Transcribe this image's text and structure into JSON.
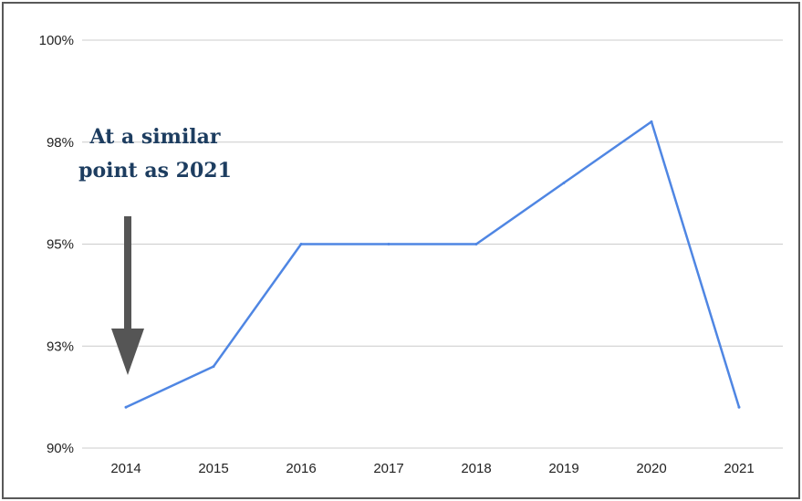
{
  "chart_data": {
    "type": "line",
    "title": "",
    "xlabel": "",
    "ylabel": "",
    "x": [
      "2014",
      "2015",
      "2016",
      "2017",
      "2018",
      "2019",
      "2020",
      "2021"
    ],
    "series": [
      {
        "values": [
          91.0,
          92.0,
          95.0,
          95.0,
          95.0,
          96.5,
          98.0,
          91.0
        ]
      }
    ],
    "ylim": [
      90,
      100
    ],
    "y_ticks": [
      90,
      92.5,
      95,
      97.5,
      100
    ],
    "y_tick_labels": [
      "90%",
      "93%",
      "95%",
      "98%",
      "100%"
    ],
    "grid": true,
    "legend": "none",
    "colors": {
      "series": "#4f86e3",
      "annotation": "#1d3d60",
      "arrow": "#555555"
    },
    "annotation": {
      "lines": [
        "At a similar",
        "point as 2021"
      ],
      "points_to": "2014",
      "icon": "down-arrow-icon"
    }
  }
}
